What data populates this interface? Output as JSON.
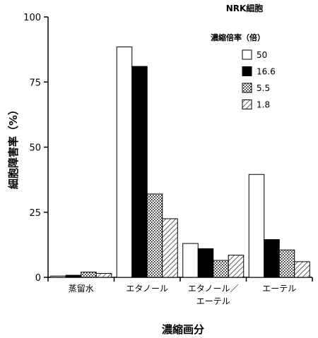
{
  "chart_data": {
    "type": "bar",
    "title": "NRK細胞",
    "xlabel": "濃縮画分",
    "ylabel": "細胞障害率（%）",
    "ylim": [
      0,
      100
    ],
    "yticks": [
      "0",
      "25",
      "50",
      "75",
      "100"
    ],
    "categories": [
      {
        "lines": [
          "蒸留水"
        ]
      },
      {
        "lines": [
          "エタノール"
        ]
      },
      {
        "lines": [
          "エタノール／",
          "エーテル"
        ]
      },
      {
        "lines": [
          "エーテル"
        ]
      }
    ],
    "legend_title": "濃縮倍率（倍）",
    "legend_position": "top-right",
    "series": [
      {
        "name": "50",
        "fill": "white",
        "values": [
          0.5,
          88.5,
          13,
          39.5
        ]
      },
      {
        "name": "16.6",
        "fill": "black",
        "values": [
          0.8,
          81,
          11,
          14.5
        ]
      },
      {
        "name": "5.5",
        "fill": "dotted",
        "values": [
          2,
          32,
          6.5,
          10.5
        ]
      },
      {
        "name": "1.8",
        "fill": "hatched",
        "values": [
          1.5,
          22.5,
          8.5,
          6
        ]
      }
    ],
    "grid": false
  }
}
